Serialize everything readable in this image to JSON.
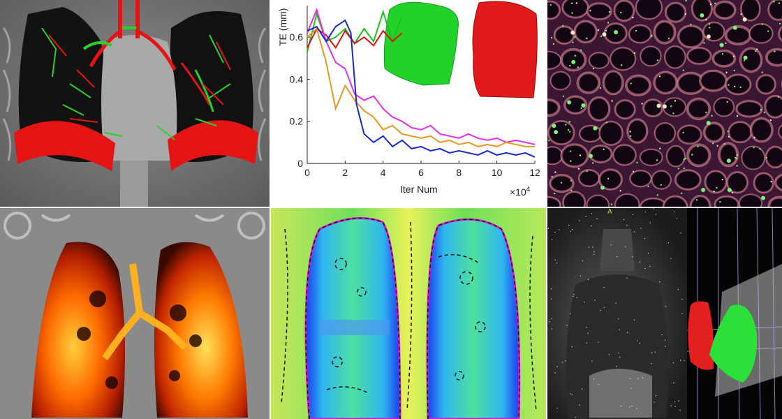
{
  "panels": {
    "ct_overlay": {
      "colors": {
        "red": "#e41414",
        "green": "#2bd12b",
        "gray": "#9a9a9a"
      }
    },
    "registration_plot": {
      "ylabel": "TE (mm)",
      "xlabel": "Iter Num",
      "x_multiplier_base": "×10",
      "x_multiplier_exp": "4"
    },
    "microscopy": {
      "colors": {
        "base": "#2a0f25",
        "cells": "#e58a9c",
        "dots": "#7ef07a"
      }
    },
    "ventilation": {
      "colors": {
        "hot": "#ff6a00",
        "bright": "#ffe15a"
      }
    },
    "strain_map": {
      "colors": {
        "green": "#3bd85a",
        "blue": "#1b3cf0",
        "yellow": "#e8f25a"
      }
    },
    "mri_3d": {
      "marker": "A",
      "colors": {
        "red": "#e32020",
        "green": "#2ce03a"
      }
    }
  },
  "chart_data": {
    "type": "line",
    "xlabel": "Iter Num",
    "ylabel": "TE (mm)",
    "xlim": [
      0,
      12
    ],
    "ylim": [
      0,
      0.75
    ],
    "x_scale_note": "×10^4",
    "xticks": [
      0,
      2,
      4,
      6,
      8,
      10,
      12
    ],
    "yticks": [
      0,
      0.2,
      0.4,
      0.6
    ],
    "series": [
      {
        "color": "#18c418",
        "x": [
          0,
          0.5,
          1,
          1.5,
          2,
          2.5,
          3,
          3.5,
          4,
          4.5,
          5
        ],
        "y": [
          0.53,
          0.71,
          0.58,
          0.6,
          0.64,
          0.57,
          0.64,
          0.58,
          0.72,
          0.58,
          0.7
        ]
      },
      {
        "color": "#e01010",
        "x": [
          0,
          0.5,
          1,
          1.5,
          2,
          2.5,
          3,
          3.5,
          4,
          4.5,
          5
        ],
        "y": [
          0.55,
          0.64,
          0.61,
          0.55,
          0.63,
          0.57,
          0.6,
          0.56,
          0.63,
          0.58,
          0.62
        ]
      },
      {
        "color": "#e82ee8",
        "x": [
          0,
          0.5,
          1,
          1.5,
          2,
          2.5,
          3,
          3.5,
          4,
          4.5,
          5,
          5.5,
          6,
          6.5,
          7,
          7.5,
          8,
          8.5,
          9,
          9.5,
          10,
          10.5,
          11,
          11.5,
          12
        ],
        "y": [
          0.62,
          0.73,
          0.58,
          0.48,
          0.45,
          0.33,
          0.3,
          0.32,
          0.26,
          0.22,
          0.2,
          0.17,
          0.16,
          0.18,
          0.14,
          0.13,
          0.12,
          0.14,
          0.12,
          0.11,
          0.12,
          0.1,
          0.11,
          0.1,
          0.09
        ]
      },
      {
        "color": "#e8961e",
        "x": [
          0,
          0.5,
          1,
          1.5,
          2,
          2.5,
          3,
          3.5,
          4,
          4.5,
          5,
          5.5,
          6,
          6.5,
          7,
          7.5,
          8,
          8.5,
          9,
          9.5,
          10,
          10.5,
          11,
          11.5,
          12
        ],
        "y": [
          0.6,
          0.64,
          0.48,
          0.26,
          0.37,
          0.3,
          0.25,
          0.22,
          0.16,
          0.18,
          0.14,
          0.13,
          0.12,
          0.13,
          0.1,
          0.11,
          0.09,
          0.1,
          0.08,
          0.09,
          0.08,
          0.1,
          0.09,
          0.08,
          0.08
        ]
      },
      {
        "color": "#1628cc",
        "x": [
          0,
          0.5,
          1,
          1.5,
          2,
          2.3,
          2.6,
          3,
          3.5,
          4,
          4.5,
          5,
          5.5,
          6,
          6.5,
          7,
          7.5,
          8,
          8.5,
          9,
          9.5,
          10,
          10.5,
          11,
          11.5,
          12
        ],
        "y": [
          0.63,
          0.65,
          0.58,
          0.65,
          0.68,
          0.62,
          0.28,
          0.14,
          0.1,
          0.13,
          0.08,
          0.11,
          0.07,
          0.08,
          0.06,
          0.07,
          0.05,
          0.06,
          0.05,
          0.04,
          0.06,
          0.04,
          0.05,
          0.04,
          0.05,
          0.03
        ]
      }
    ]
  }
}
